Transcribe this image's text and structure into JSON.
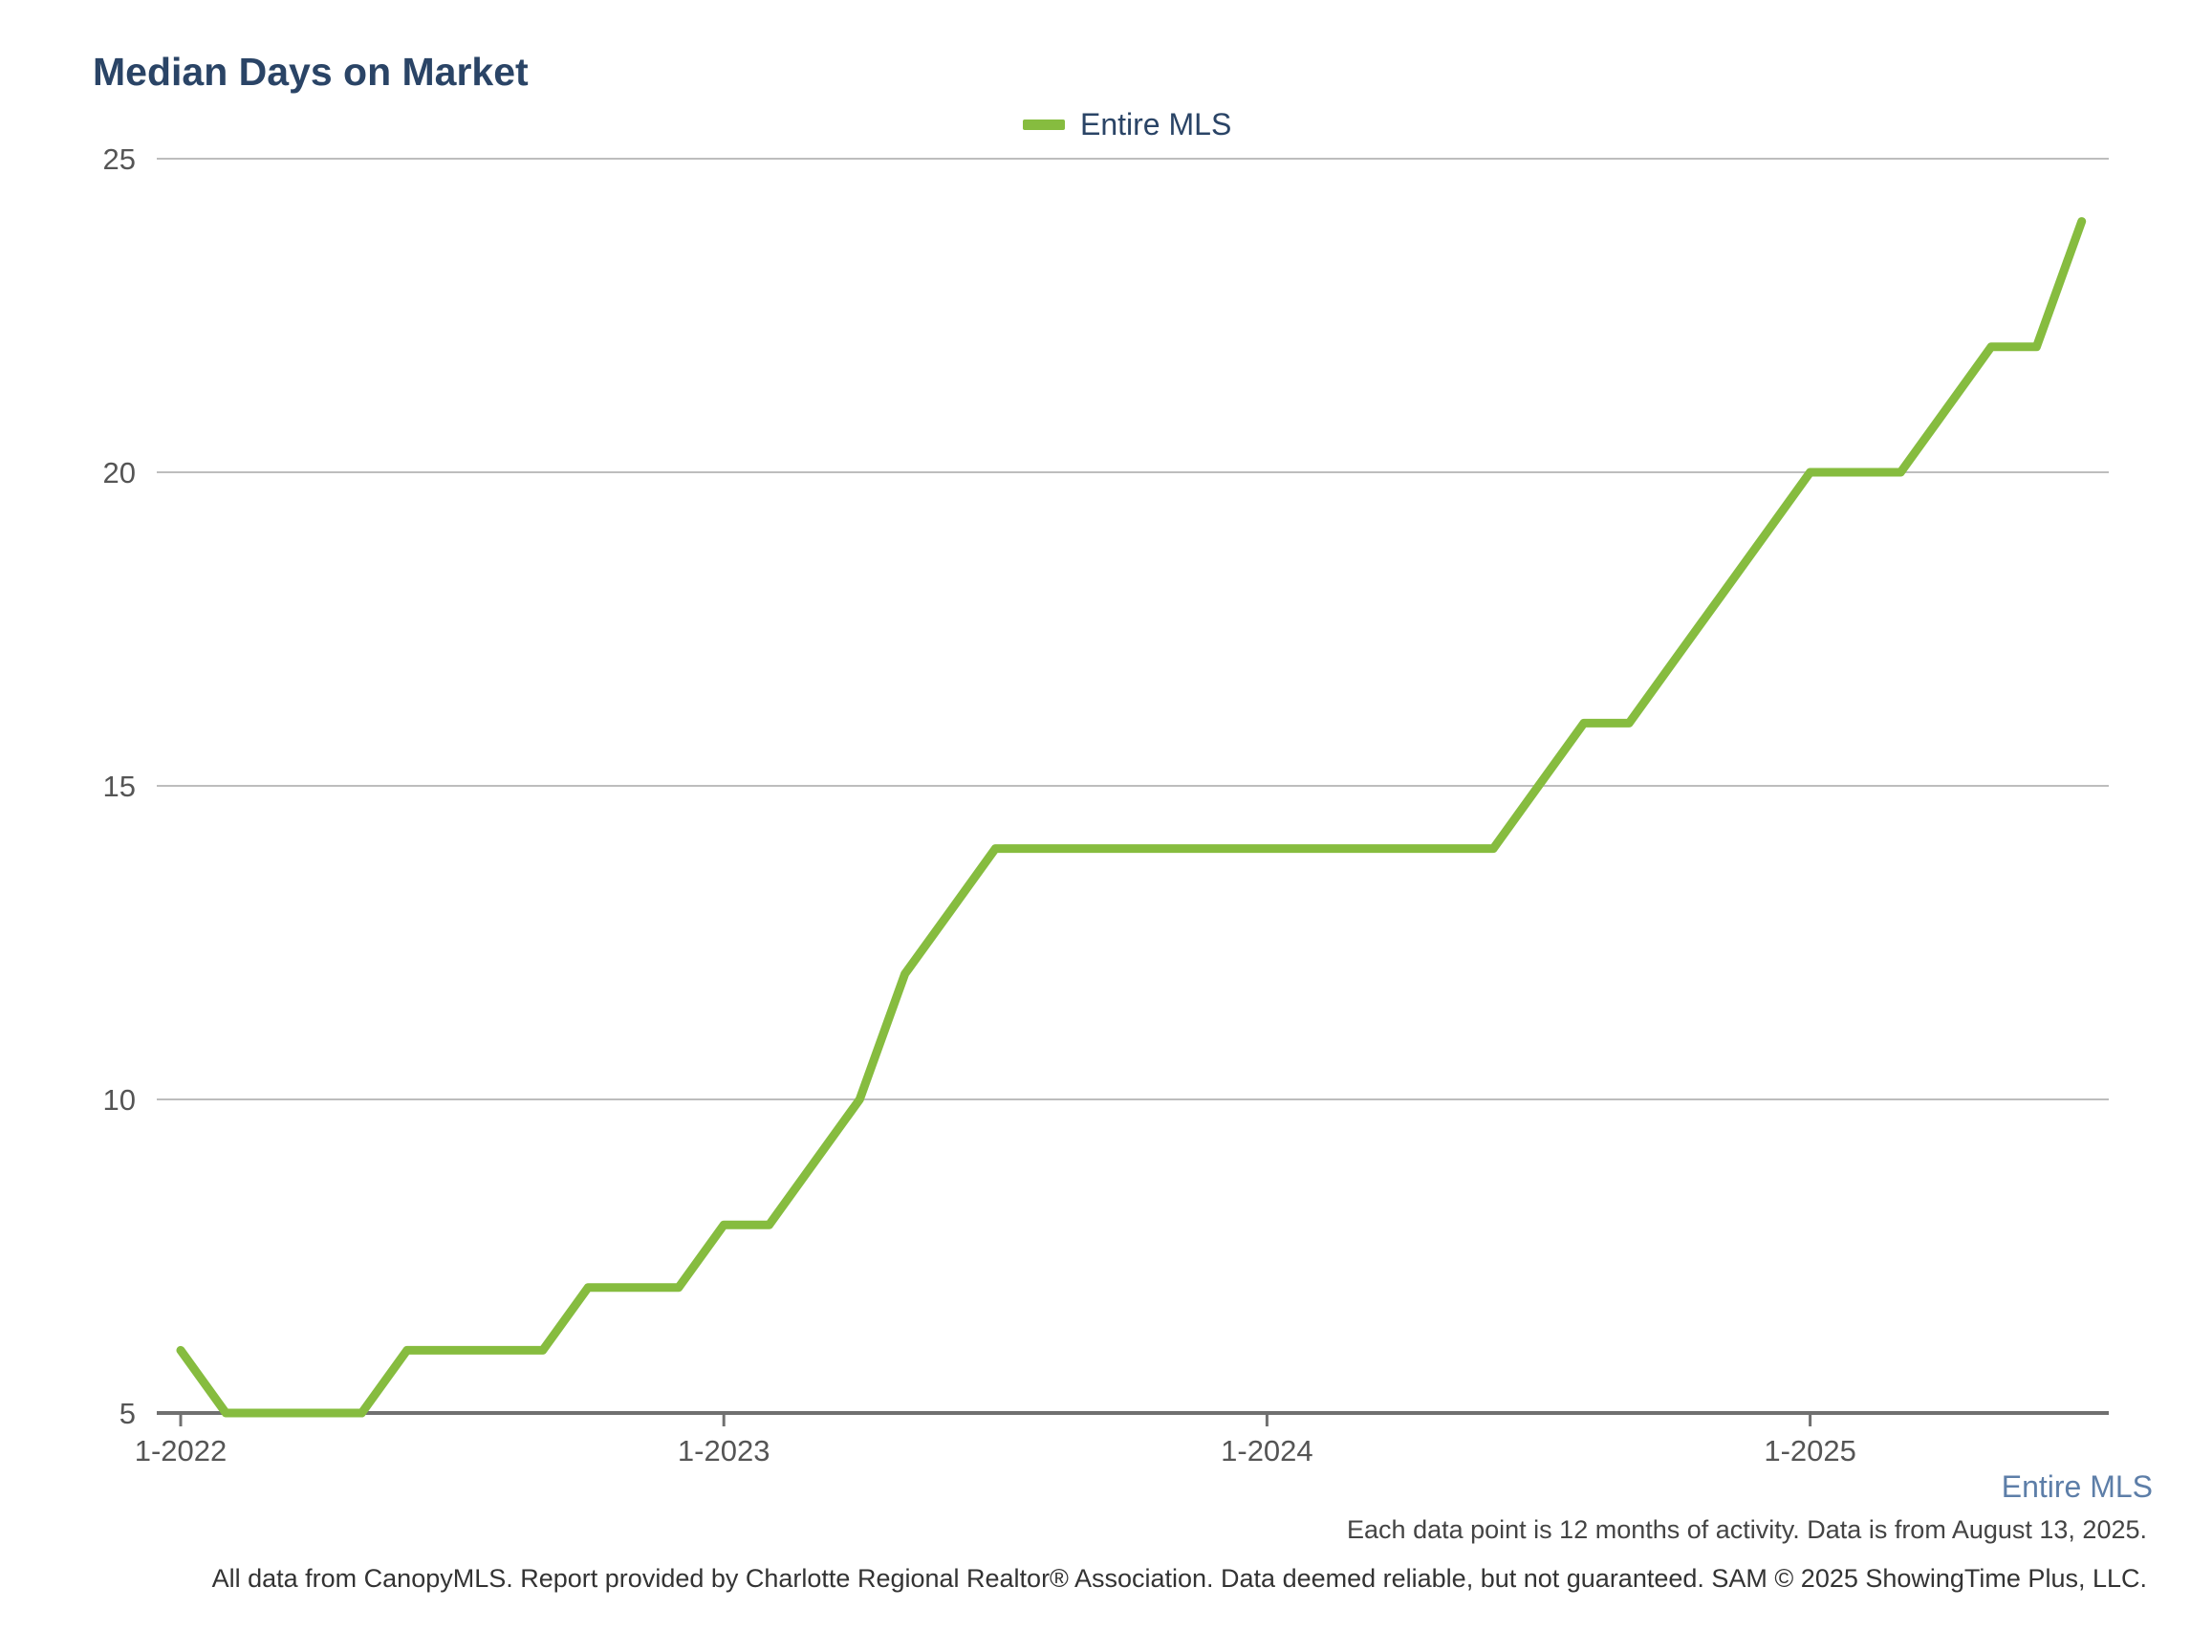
{
  "chart_data": {
    "type": "line",
    "title": "Median Days on Market",
    "xlabel": "",
    "ylabel": "",
    "ylim": [
      5,
      25
    ],
    "yticks": [
      "5",
      "10",
      "15",
      "20",
      "25"
    ],
    "xticks": [
      "1-2022",
      "1-2023",
      "1-2024",
      "1-2025"
    ],
    "grid": true,
    "legend_position": "top-center",
    "series": [
      {
        "name": "Entire MLS",
        "color": "#86bc3f",
        "start": "2022-01",
        "x": [
          "2022-01",
          "2022-02",
          "2022-03",
          "2022-04",
          "2022-05",
          "2022-06",
          "2022-07",
          "2022-08",
          "2022-09",
          "2022-10",
          "2022-11",
          "2022-12",
          "2023-01",
          "2023-02",
          "2023-03",
          "2023-04",
          "2023-05",
          "2023-06",
          "2023-07",
          "2023-08",
          "2023-09",
          "2023-10",
          "2023-11",
          "2023-12",
          "2024-01",
          "2024-02",
          "2024-03",
          "2024-04",
          "2024-05",
          "2024-06",
          "2024-07",
          "2024-08",
          "2024-09",
          "2024-10",
          "2024-11",
          "2024-12",
          "2025-01",
          "2025-02",
          "2025-03",
          "2025-04",
          "2025-05",
          "2025-06",
          "2025-07"
        ],
        "values": [
          6,
          5,
          5,
          5,
          5,
          6,
          6,
          6,
          6,
          7,
          7,
          7,
          8,
          8,
          9,
          10,
          12,
          13,
          14,
          14,
          14,
          14,
          14,
          14,
          14,
          14,
          14,
          14,
          14,
          14,
          15,
          16,
          16,
          17,
          18,
          19,
          20,
          20,
          20,
          21,
          22,
          22,
          24
        ]
      }
    ]
  },
  "legend": {
    "label": "Entire MLS",
    "color": "#86bc3f"
  },
  "area_label": "Entire MLS",
  "note": "Each data point is 12 months of activity. Data is from August 13, 2025.",
  "footer": "All data from CanopyMLS. Report provided by Charlotte Regional Realtor® Association. Data deemed reliable, but not guaranteed. SAM © 2025 ShowingTime Plus, LLC."
}
